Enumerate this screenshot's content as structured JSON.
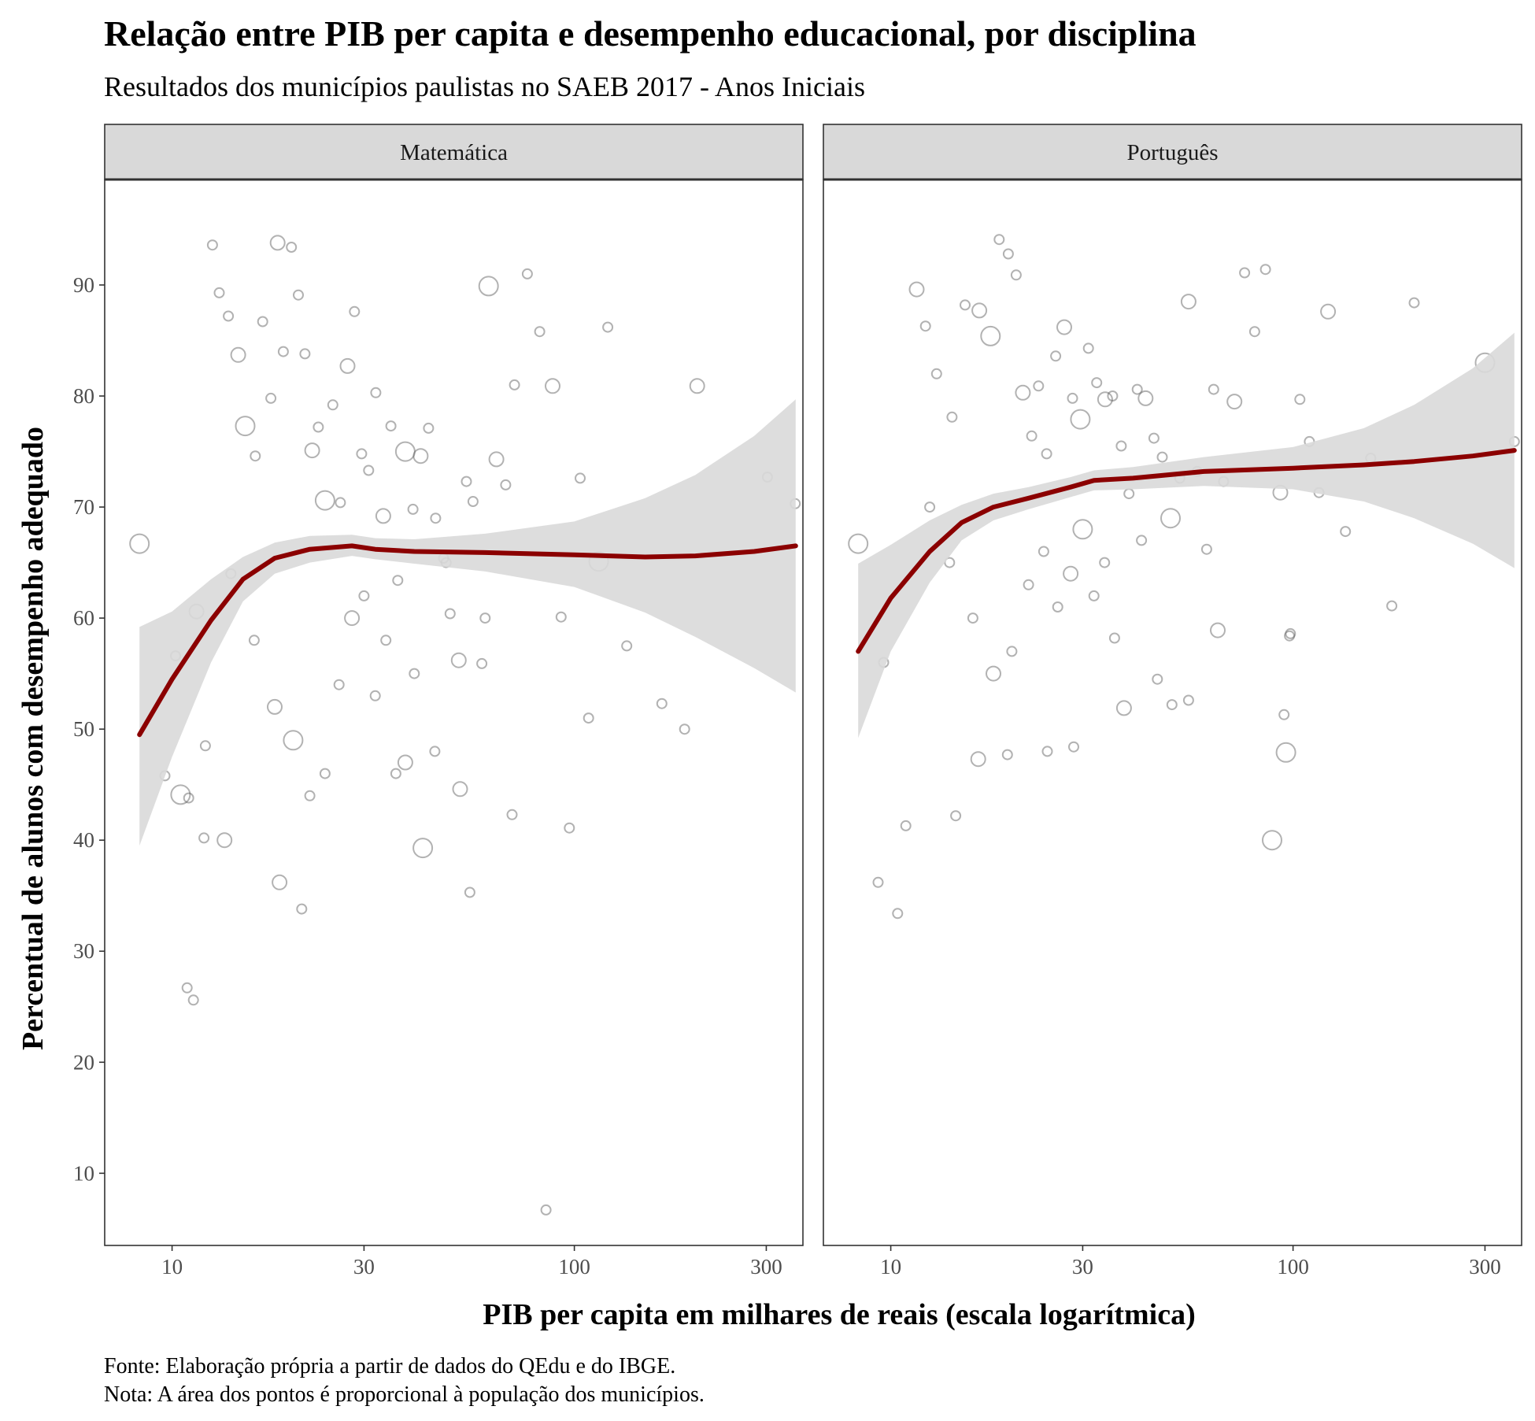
{
  "title": "Relação entre PIB per capita e desempenho educacional, por disciplina",
  "subtitle": "Resultados dos municípios paulistas no SAEB 2017 - Anos Iniciais",
  "caption_lines": [
    "Fonte: Elaboração própria a partir de dados do QEdu e do IBGE.",
    "Nota: A área dos pontos é proporcional à população dos municípios."
  ],
  "colors": {
    "point_stroke": "#555555",
    "smooth_line": "#8b0000",
    "ribbon": "#d9d9d9",
    "strip_bg": "#d9d9d9",
    "panel_border": "#333333"
  },
  "chart_data": {
    "type": "scatter",
    "title": "Relação entre PIB per capita e desempenho educacional, por disciplina",
    "subtitle": "Resultados dos municípios paulistas no SAEB 2017 - Anos Iniciais",
    "xlabel": "PIB per capita em milhares de reais (escala logarítmica)",
    "ylabel": "Percentual de alunos com desempenho adequado",
    "x_scale": "log10",
    "xlim": [
      6.8,
      370
    ],
    "ylim": [
      3.5,
      99.5
    ],
    "x_ticks": [
      10,
      30,
      100,
      300
    ],
    "x_tick_labels": [
      "10",
      "30",
      "100",
      "300"
    ],
    "y_ticks": [
      10,
      20,
      30,
      40,
      50,
      60,
      70,
      80,
      90
    ],
    "y_tick_labels": [
      "10",
      "20",
      "30",
      "40",
      "50",
      "60",
      "70",
      "80",
      "90"
    ],
    "grid": false,
    "size_encoding": "população",
    "facets": [
      {
        "name": "Matemática",
        "points": [
          [
            8.3,
            66.7
          ],
          [
            9.6,
            45.8
          ],
          [
            10.2,
            56.6
          ],
          [
            10.9,
            26.7
          ],
          [
            11.3,
            25.6
          ],
          [
            11.5,
            60.6
          ],
          [
            12.1,
            48.5
          ],
          [
            12.6,
            93.6
          ],
          [
            13.1,
            89.3
          ],
          [
            13.8,
            87.2
          ],
          [
            14.6,
            83.7
          ],
          [
            15.2,
            77.3
          ],
          [
            16.1,
            74.6
          ],
          [
            16.8,
            86.7
          ],
          [
            17.6,
            79.8
          ],
          [
            18.3,
            93.8
          ],
          [
            18.9,
            84.0
          ],
          [
            19.8,
            93.4
          ],
          [
            20.6,
            89.1
          ],
          [
            21.4,
            83.8
          ],
          [
            22.3,
            75.1
          ],
          [
            23.1,
            77.2
          ],
          [
            24.0,
            70.6
          ],
          [
            25.1,
            79.2
          ],
          [
            26.2,
            70.4
          ],
          [
            27.3,
            82.7
          ],
          [
            28.4,
            87.6
          ],
          [
            29.6,
            74.8
          ],
          [
            30.8,
            73.3
          ],
          [
            32.1,
            80.3
          ],
          [
            33.5,
            69.2
          ],
          [
            35.0,
            77.3
          ],
          [
            36.4,
            63.4
          ],
          [
            38.0,
            75.0
          ],
          [
            39.7,
            69.8
          ],
          [
            41.5,
            74.6
          ],
          [
            43.4,
            77.1
          ],
          [
            45.2,
            69.0
          ],
          [
            47.3,
            65.4
          ],
          [
            49.1,
            60.4
          ],
          [
            51.6,
            56.2
          ],
          [
            53.9,
            72.3
          ],
          [
            56.0,
            70.5
          ],
          [
            58.9,
            55.9
          ],
          [
            61.2,
            89.9
          ],
          [
            64.0,
            74.3
          ],
          [
            67.5,
            72.0
          ],
          [
            71.0,
            81.0
          ],
          [
            76.4,
            91.0
          ],
          [
            82.0,
            85.8
          ],
          [
            88.3,
            80.9
          ],
          [
            92.7,
            60.1
          ],
          [
            97.2,
            41.1
          ],
          [
            103.4,
            72.6
          ],
          [
            108.5,
            51.0
          ],
          [
            115.0,
            65.1
          ],
          [
            121.1,
            86.2
          ],
          [
            135.0,
            57.5
          ],
          [
            165.0,
            52.3
          ],
          [
            188.0,
            50.0
          ],
          [
            202.0,
            80.9
          ],
          [
            302.0,
            72.7
          ],
          [
            354.0,
            70.3
          ],
          [
            14.0,
            64.0
          ],
          [
            16.0,
            58.0
          ],
          [
            18.0,
            52.0
          ],
          [
            20.0,
            49.0
          ],
          [
            22.0,
            44.0
          ],
          [
            24.0,
            46.0
          ],
          [
            26.0,
            54.0
          ],
          [
            28.0,
            60.0
          ],
          [
            30.0,
            62.0
          ],
          [
            32.0,
            53.0
          ],
          [
            34.0,
            58.0
          ],
          [
            36.0,
            46.0
          ],
          [
            38.0,
            47.0
          ],
          [
            40.0,
            55.0
          ],
          [
            42.0,
            39.3
          ],
          [
            45.0,
            48.0
          ],
          [
            48.0,
            65.0
          ],
          [
            52.0,
            44.6
          ],
          [
            55.0,
            35.3
          ],
          [
            60.0,
            60.0
          ],
          [
            70.0,
            42.3
          ],
          [
            85.0,
            6.7
          ],
          [
            18.5,
            36.2
          ],
          [
            21.0,
            33.8
          ],
          [
            12.0,
            40.2
          ],
          [
            10.5,
            44.1
          ],
          [
            11.0,
            43.8
          ],
          [
            13.5,
            40.0
          ]
        ],
        "smooth": [
          [
            8.3,
            49.5
          ],
          [
            10.0,
            54.5
          ],
          [
            12.5,
            59.8
          ],
          [
            15.0,
            63.5
          ],
          [
            18.0,
            65.4
          ],
          [
            22.0,
            66.2
          ],
          [
            28.0,
            66.5
          ],
          [
            32.0,
            66.2
          ],
          [
            40.0,
            66.0
          ],
          [
            60.0,
            65.9
          ],
          [
            100.0,
            65.7
          ],
          [
            150.0,
            65.5
          ],
          [
            200.0,
            65.6
          ],
          [
            280.0,
            66.0
          ],
          [
            355.0,
            66.5
          ]
        ],
        "ribbon_lower": [
          [
            8.3,
            39.5
          ],
          [
            10.0,
            47.5
          ],
          [
            12.5,
            56.0
          ],
          [
            15.0,
            61.5
          ],
          [
            18.0,
            64.0
          ],
          [
            22.0,
            65.0
          ],
          [
            28.0,
            65.6
          ],
          [
            32.0,
            65.3
          ],
          [
            40.0,
            64.9
          ],
          [
            60.0,
            64.2
          ],
          [
            100.0,
            62.8
          ],
          [
            150.0,
            60.5
          ],
          [
            200.0,
            58.3
          ],
          [
            280.0,
            55.5
          ],
          [
            355.0,
            53.3
          ]
        ],
        "ribbon_upper": [
          [
            8.3,
            59.2
          ],
          [
            10.0,
            60.6
          ],
          [
            12.5,
            63.5
          ],
          [
            15.0,
            65.5
          ],
          [
            18.0,
            66.8
          ],
          [
            22.0,
            67.4
          ],
          [
            28.0,
            67.5
          ],
          [
            32.0,
            67.2
          ],
          [
            40.0,
            67.1
          ],
          [
            60.0,
            67.6
          ],
          [
            100.0,
            68.7
          ],
          [
            150.0,
            70.8
          ],
          [
            200.0,
            72.9
          ],
          [
            280.0,
            76.4
          ],
          [
            355.0,
            79.7
          ]
        ]
      },
      {
        "name": "Português",
        "points": [
          [
            8.3,
            66.7
          ],
          [
            9.3,
            36.2
          ],
          [
            9.6,
            56.0
          ],
          [
            10.4,
            33.4
          ],
          [
            10.9,
            41.3
          ],
          [
            11.6,
            89.6
          ],
          [
            12.2,
            86.3
          ],
          [
            13.0,
            82.0
          ],
          [
            14.2,
            78.1
          ],
          [
            15.3,
            88.2
          ],
          [
            16.6,
            87.7
          ],
          [
            17.7,
            85.4
          ],
          [
            18.6,
            94.1
          ],
          [
            19.6,
            92.8
          ],
          [
            20.5,
            90.9
          ],
          [
            21.3,
            80.3
          ],
          [
            22.4,
            76.4
          ],
          [
            23.3,
            80.9
          ],
          [
            24.4,
            74.8
          ],
          [
            25.7,
            83.6
          ],
          [
            27.0,
            86.2
          ],
          [
            28.3,
            79.8
          ],
          [
            29.6,
            77.9
          ],
          [
            31.0,
            84.3
          ],
          [
            32.5,
            81.2
          ],
          [
            34.1,
            79.7
          ],
          [
            35.6,
            80.0
          ],
          [
            37.4,
            75.5
          ],
          [
            39.1,
            71.2
          ],
          [
            41.0,
            80.6
          ],
          [
            43.0,
            79.8
          ],
          [
            45.1,
            76.2
          ],
          [
            47.3,
            74.5
          ],
          [
            49.6,
            69.0
          ],
          [
            52.3,
            72.6
          ],
          [
            55.0,
            88.5
          ],
          [
            57.8,
            73.2
          ],
          [
            61.0,
            66.2
          ],
          [
            63.5,
            80.6
          ],
          [
            67.2,
            72.3
          ],
          [
            71.5,
            79.5
          ],
          [
            75.8,
            91.1
          ],
          [
            80.3,
            85.8
          ],
          [
            85.4,
            91.4
          ],
          [
            88.7,
            40.0
          ],
          [
            93.0,
            71.3
          ],
          [
            98.5,
            58.6
          ],
          [
            104.0,
            79.7
          ],
          [
            109.8,
            75.9
          ],
          [
            116.0,
            71.3
          ],
          [
            122.2,
            87.6
          ],
          [
            135.0,
            67.8
          ],
          [
            156.0,
            74.4
          ],
          [
            176.0,
            61.1
          ],
          [
            200.0,
            88.4
          ],
          [
            300.0,
            83.0
          ],
          [
            355.0,
            75.9
          ],
          [
            12.5,
            70.0
          ],
          [
            14.0,
            65.0
          ],
          [
            16.0,
            60.0
          ],
          [
            18.0,
            55.0
          ],
          [
            20.0,
            57.0
          ],
          [
            22.0,
            63.0
          ],
          [
            24.0,
            66.0
          ],
          [
            26.0,
            61.0
          ],
          [
            28.0,
            64.0
          ],
          [
            30.0,
            68.0
          ],
          [
            32.0,
            62.0
          ],
          [
            34.0,
            65.0
          ],
          [
            36.0,
            58.2
          ],
          [
            38.0,
            51.9
          ],
          [
            42.0,
            67.0
          ],
          [
            46.0,
            54.5
          ],
          [
            50.0,
            52.2
          ],
          [
            55.0,
            52.6
          ],
          [
            65.0,
            58.9
          ],
          [
            98.0,
            58.4
          ],
          [
            96.0,
            47.9
          ],
          [
            95.0,
            51.3
          ],
          [
            14.5,
            42.2
          ],
          [
            16.5,
            47.3
          ],
          [
            19.5,
            47.7
          ],
          [
            24.5,
            48.0
          ],
          [
            28.5,
            48.4
          ]
        ],
        "smooth": [
          [
            8.3,
            57.0
          ],
          [
            10.0,
            61.8
          ],
          [
            12.5,
            66.0
          ],
          [
            15.0,
            68.6
          ],
          [
            18.0,
            70.0
          ],
          [
            22.0,
            70.8
          ],
          [
            28.0,
            71.8
          ],
          [
            32.0,
            72.4
          ],
          [
            40.0,
            72.6
          ],
          [
            60.0,
            73.2
          ],
          [
            100.0,
            73.5
          ],
          [
            150.0,
            73.8
          ],
          [
            200.0,
            74.1
          ],
          [
            280.0,
            74.6
          ],
          [
            355.0,
            75.1
          ]
        ],
        "ribbon_lower": [
          [
            8.3,
            49.2
          ],
          [
            10.0,
            57.0
          ],
          [
            12.5,
            63.2
          ],
          [
            15.0,
            67.0
          ],
          [
            18.0,
            68.8
          ],
          [
            22.0,
            69.8
          ],
          [
            28.0,
            70.9
          ],
          [
            32.0,
            71.5
          ],
          [
            40.0,
            71.6
          ],
          [
            60.0,
            71.9
          ],
          [
            100.0,
            71.6
          ],
          [
            150.0,
            70.5
          ],
          [
            200.0,
            69.0
          ],
          [
            280.0,
            66.7
          ],
          [
            355.0,
            64.5
          ]
        ],
        "ribbon_upper": [
          [
            8.3,
            64.9
          ],
          [
            10.0,
            66.6
          ],
          [
            12.5,
            68.8
          ],
          [
            15.0,
            70.2
          ],
          [
            18.0,
            71.2
          ],
          [
            22.0,
            71.8
          ],
          [
            28.0,
            72.7
          ],
          [
            32.0,
            73.3
          ],
          [
            40.0,
            73.6
          ],
          [
            60.0,
            74.5
          ],
          [
            100.0,
            75.4
          ],
          [
            150.0,
            77.1
          ],
          [
            200.0,
            79.2
          ],
          [
            280.0,
            82.5
          ],
          [
            355.0,
            85.7
          ]
        ]
      }
    ]
  }
}
